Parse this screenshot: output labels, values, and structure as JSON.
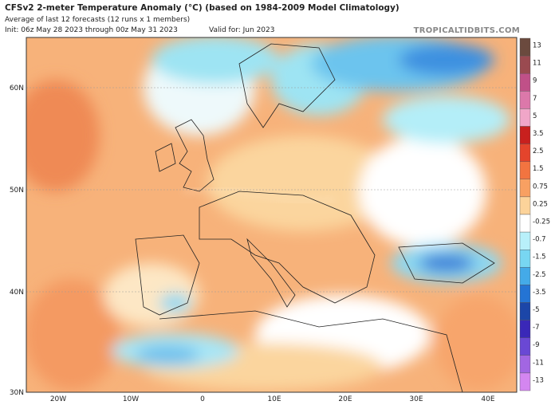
{
  "header": {
    "title": "CFSv2 2-meter Temperature Anomaly (°C) (based on 1984-2009 Model Climatology)",
    "subtitle": "Average of last 12 forecasts (12 runs x 1 members)",
    "init": "Init: 06z May 28 2023 through 00z May 31 2023",
    "valid": "Valid for: Jun 2023",
    "watermark": "TROPICALTIDBITS.COM"
  },
  "map": {
    "latitude_labels": [
      "60N",
      "50N",
      "40N",
      "30N"
    ],
    "longitude_labels": [
      "20W",
      "10W",
      "0",
      "10E",
      "20E",
      "30E",
      "40E"
    ]
  },
  "colorbar": {
    "labels": [
      "13",
      "11",
      "9",
      "7",
      "5",
      "3.5",
      "2.5",
      "1.5",
      "0.75",
      "0.25",
      "-0.25",
      "-0.7",
      "-1.5",
      "-2.5",
      "-3.5",
      "-5",
      "-7",
      "-9",
      "-11",
      "-13"
    ],
    "colors": [
      "#6b4a3e",
      "#9a4a50",
      "#c05088",
      "#dc78aa",
      "#f0a6c8",
      "#c8201e",
      "#e4442c",
      "#f27440",
      "#f8a062",
      "#fcd39a",
      "#ffffff",
      "#b8f0fa",
      "#78d6f2",
      "#44aae8",
      "#2474d4",
      "#1c46a8",
      "#3a28b8",
      "#6a48d4",
      "#a266e2",
      "#d486f0"
    ]
  }
}
